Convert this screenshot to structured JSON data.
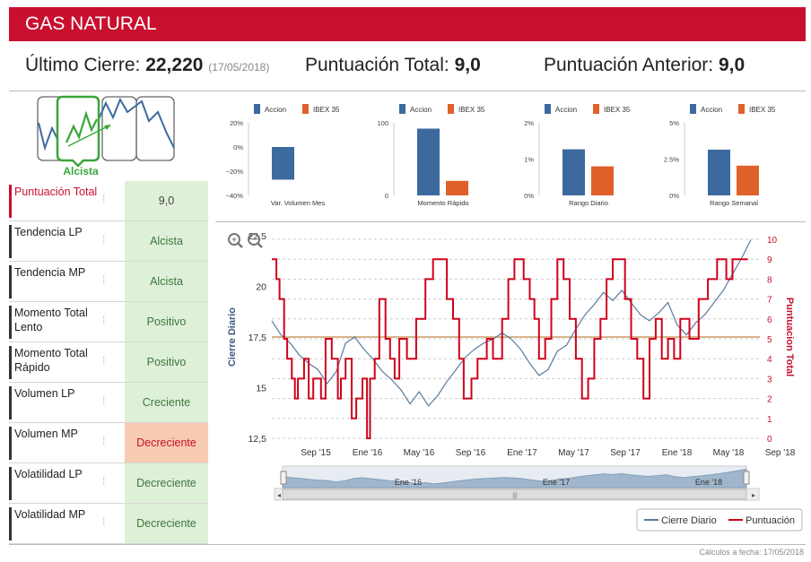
{
  "header": {
    "title": "GAS NATURAL"
  },
  "summary": {
    "last_close_label": "Último Cierre:",
    "last_close_value": "22,220",
    "last_close_date": "(17/05/2018)",
    "total_score_label": "Puntuación Total:",
    "total_score_value": "9,0",
    "prev_score_label": "Puntuación Anterior:",
    "prev_score_value": "9,0"
  },
  "trend": {
    "label": "Alcista"
  },
  "indicators": [
    {
      "label": "Puntuación Total",
      "value": "9,0",
      "state": "neutral"
    },
    {
      "label": "Tendencia LP",
      "value": "Alcista",
      "state": "positive"
    },
    {
      "label": "Tendencia MP",
      "value": "Alcista",
      "state": "positive"
    },
    {
      "label": "Momento Total Lento",
      "value": "Positivo",
      "state": "positive"
    },
    {
      "label": "Momento Total Rápido",
      "value": "Positivo",
      "state": "positive"
    },
    {
      "label": "Volumen LP",
      "value": "Creciente",
      "state": "positive"
    },
    {
      "label": "Volumen MP",
      "value": "Decreciente",
      "state": "negative"
    },
    {
      "label": "Volatilidad LP",
      "value": "Decreciente",
      "state": "positive"
    },
    {
      "label": "Volatilidad MP",
      "value": "Decreciente",
      "state": "positive"
    }
  ],
  "colors": {
    "accent": "#c8102e",
    "accion": "#3d6a9e",
    "ibex": "#e0602a",
    "positive_bg": "#dff0d8",
    "negative_bg": "#f7cbb0",
    "price_line": "#5a7a9e",
    "score_line": "#d0021b",
    "ref_line": "#d9b38c"
  },
  "chart_data": [
    {
      "type": "bar",
      "title": "Var. Volumen Mes",
      "legend": [
        "Accion",
        "IBEX 35"
      ],
      "series": [
        {
          "name": "Accion",
          "values": [
            -27
          ]
        }
      ],
      "yticks": [
        "20%",
        "0%",
        "−20%",
        "−40%"
      ],
      "ylim": [
        -40,
        20
      ]
    },
    {
      "type": "bar",
      "title": "Momento Rápido",
      "legend": [
        "Accion",
        "IBEX 35"
      ],
      "series": [
        {
          "name": "Accion",
          "values": [
            92
          ]
        },
        {
          "name": "IBEX 35",
          "values": [
            20
          ]
        }
      ],
      "yticks": [
        "100",
        "0"
      ],
      "ylim": [
        0,
        100
      ]
    },
    {
      "type": "bar",
      "title": "Rango Diario",
      "legend": [
        "Accion",
        "IBEX 35"
      ],
      "series": [
        {
          "name": "Accion",
          "values": [
            1.27
          ]
        },
        {
          "name": "IBEX 35",
          "values": [
            0.8
          ]
        }
      ],
      "yticks": [
        "2%",
        "1%",
        "0%"
      ],
      "ylim": [
        0,
        2
      ]
    },
    {
      "type": "bar",
      "title": "Rango Semanal",
      "legend": [
        "Accion",
        "IBEX 35"
      ],
      "series": [
        {
          "name": "Accion",
          "values": [
            3.15
          ]
        },
        {
          "name": "IBEX 35",
          "values": [
            2.05
          ]
        }
      ],
      "yticks": [
        "5%",
        "2.5%",
        "0%"
      ],
      "ylim": [
        0,
        5
      ]
    },
    {
      "type": "line",
      "ylabel_left": "Cierre Diario",
      "ylabel_right": "Puntuacion Total",
      "ylim_left": [
        12.5,
        22.5
      ],
      "ylim_right": [
        0,
        10
      ],
      "left_ticks": [
        "22,5",
        "20",
        "17,5",
        "15",
        "12,5"
      ],
      "right_ticks": [
        "10",
        "9",
        "8",
        "7",
        "6",
        "5",
        "4",
        "3",
        "2",
        "1",
        "0"
      ],
      "x_labels": [
        "Sep '15",
        "Ene '16",
        "May '16",
        "Sep '16",
        "Ene '17",
        "May '17",
        "Sep '17",
        "Ene '18",
        "May '18",
        "Sep '18"
      ],
      "navigator_labels": [
        "Ene '16",
        "Ene '17",
        "Ene '18"
      ],
      "ref_line_value": 17.5,
      "series": [
        {
          "name": "Cierre Diario",
          "points": [
            [
              0,
              18.3
            ],
            [
              3,
              17.6
            ],
            [
              6,
              17.2
            ],
            [
              9,
              16.6
            ],
            [
              12,
              16.2
            ],
            [
              15,
              15.9
            ],
            [
              18,
              15.2
            ],
            [
              21,
              15.8
            ],
            [
              24,
              17.2
            ],
            [
              27,
              17.5
            ],
            [
              30,
              16.9
            ],
            [
              33,
              16.4
            ],
            [
              36,
              15.8
            ],
            [
              39,
              15.4
            ],
            [
              42,
              14.9
            ],
            [
              45,
              14.2
            ],
            [
              48,
              14.8
            ],
            [
              51,
              14.1
            ],
            [
              54,
              14.6
            ],
            [
              57,
              15.3
            ],
            [
              60,
              15.9
            ],
            [
              63,
              16.5
            ],
            [
              66,
              16.9
            ],
            [
              69,
              17.2
            ],
            [
              72,
              17.4
            ],
            [
              75,
              17.7
            ],
            [
              78,
              17.4
            ],
            [
              81,
              16.9
            ],
            [
              84,
              16.2
            ],
            [
              87,
              15.6
            ],
            [
              90,
              15.9
            ],
            [
              93,
              16.8
            ],
            [
              96,
              17.1
            ],
            [
              99,
              17.9
            ],
            [
              102,
              18.6
            ],
            [
              105,
              19.1
            ],
            [
              108,
              19.7
            ],
            [
              111,
              19.3
            ],
            [
              114,
              19.8
            ],
            [
              117,
              19.2
            ],
            [
              120,
              18.6
            ],
            [
              123,
              18.3
            ],
            [
              126,
              18.7
            ],
            [
              129,
              19.2
            ],
            [
              132,
              18.1
            ],
            [
              135,
              17.6
            ],
            [
              138,
              18.2
            ],
            [
              141,
              18.6
            ],
            [
              144,
              19.2
            ],
            [
              147,
              19.8
            ],
            [
              150,
              20.6
            ],
            [
              153,
              21.4
            ],
            [
              156,
              22.3
            ]
          ]
        },
        {
          "name": "Puntuación",
          "points": [
            [
              0,
              9
            ],
            [
              1.5,
              8
            ],
            [
              2.5,
              7
            ],
            [
              4,
              5
            ],
            [
              5,
              4
            ],
            [
              6.5,
              3
            ],
            [
              7.5,
              2
            ],
            [
              8.5,
              3
            ],
            [
              10.5,
              4
            ],
            [
              12,
              2
            ],
            [
              13.5,
              3
            ],
            [
              16,
              2
            ],
            [
              17.5,
              5
            ],
            [
              19.5,
              4
            ],
            [
              21.5,
              2
            ],
            [
              22.5,
              3
            ],
            [
              24,
              4
            ],
            [
              26,
              1
            ],
            [
              27.5,
              2
            ],
            [
              29.5,
              3
            ],
            [
              31,
              0
            ],
            [
              32,
              3
            ],
            [
              33.5,
              4
            ],
            [
              35,
              7
            ],
            [
              37,
              5
            ],
            [
              38.5,
              4
            ],
            [
              40,
              3
            ],
            [
              41.5,
              5
            ],
            [
              44,
              4
            ],
            [
              47,
              6
            ],
            [
              50,
              8
            ],
            [
              52.5,
              9
            ],
            [
              55,
              9
            ],
            [
              57,
              7
            ],
            [
              59,
              6
            ],
            [
              61,
              4
            ],
            [
              62.5,
              2
            ],
            [
              65,
              3
            ],
            [
              67,
              4
            ],
            [
              70,
              5
            ],
            [
              72,
              4
            ],
            [
              75,
              6
            ],
            [
              77,
              8
            ],
            [
              79,
              9
            ],
            [
              82,
              8
            ],
            [
              84,
              7
            ],
            [
              85.5,
              6
            ],
            [
              87,
              4
            ],
            [
              89,
              5
            ],
            [
              91,
              7
            ],
            [
              93,
              9
            ],
            [
              95,
              8
            ],
            [
              97,
              6
            ],
            [
              99,
              4
            ],
            [
              101,
              2
            ],
            [
              103,
              3
            ],
            [
              105,
              5
            ],
            [
              107,
              6
            ],
            [
              109,
              8
            ],
            [
              111,
              9
            ],
            [
              113,
              9
            ],
            [
              115,
              7
            ],
            [
              117,
              5
            ],
            [
              119,
              4
            ],
            [
              121,
              2
            ],
            [
              123,
              5
            ],
            [
              125,
              6
            ],
            [
              127,
              4
            ],
            [
              129,
              5
            ],
            [
              131,
              4
            ],
            [
              133,
              6
            ],
            [
              136,
              5
            ],
            [
              139,
              7
            ],
            [
              142,
              8
            ],
            [
              145,
              9
            ],
            [
              148,
              8
            ],
            [
              150,
              9
            ],
            [
              152,
              9
            ],
            [
              155,
              9
            ]
          ]
        }
      ],
      "legend": [
        "Cierre Diario",
        "Puntuación"
      ]
    }
  ],
  "footer": {
    "note": "Cálculos a fecha: 17/05/2018"
  }
}
